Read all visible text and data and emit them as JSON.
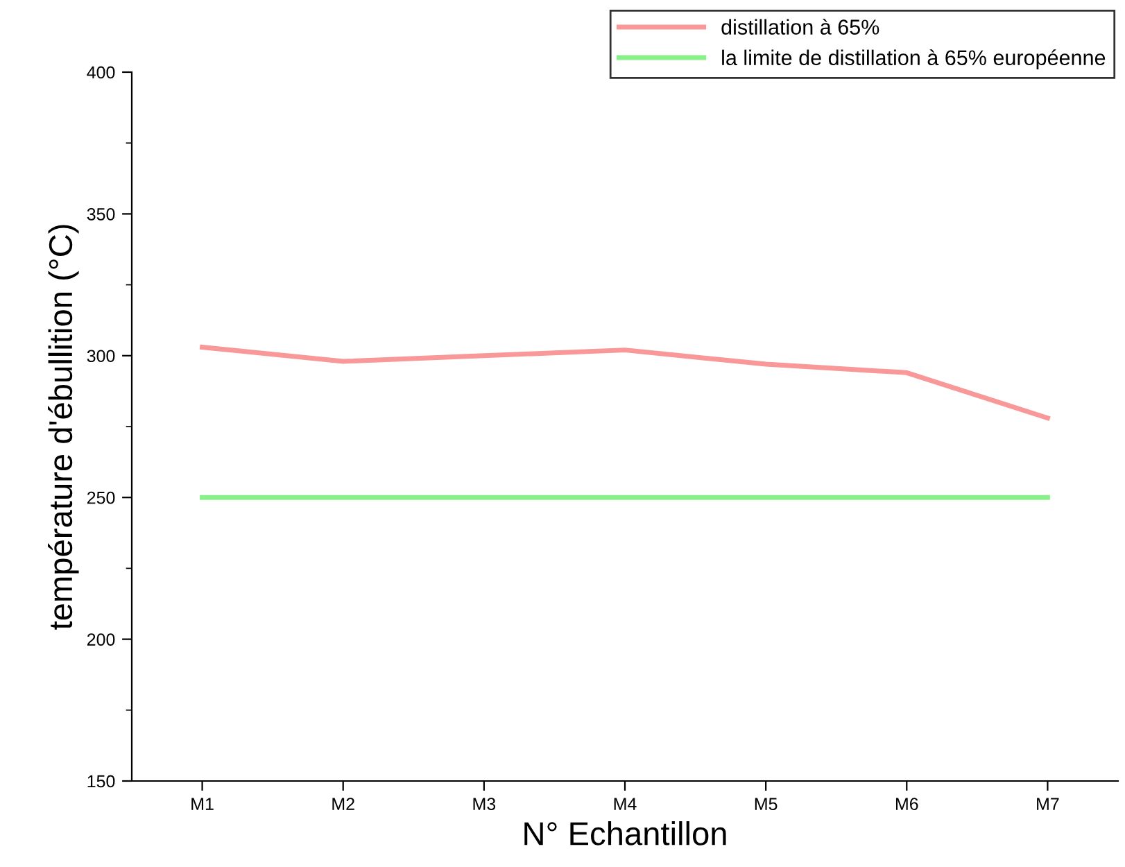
{
  "chart_data": {
    "type": "line",
    "xlabel": "N° Echantillon",
    "ylabel": "température d'ébullition (°C)",
    "categories": [
      "M1",
      "M2",
      "M3",
      "M4",
      "M5",
      "M6",
      "M7"
    ],
    "series": [
      {
        "name": "distillation à 65%",
        "color": "#f89898",
        "values": [
          303,
          298,
          300,
          302,
          297,
          294,
          278
        ]
      },
      {
        "name": "la limite de distillation à 65% européenne",
        "color": "#88f088",
        "values": [
          250,
          250,
          250,
          250,
          250,
          250,
          250
        ]
      }
    ],
    "ylim": [
      150,
      400
    ],
    "yticks": [
      150,
      {
        "value": 175,
        "label": null
      },
      200,
      {
        "value": 225,
        "label": null
      },
      250,
      {
        "value": 275,
        "label": null
      },
      300,
      {
        "value": 325,
        "label": null
      },
      350,
      {
        "value": 375,
        "label": null
      },
      400
    ],
    "grid": false,
    "legend": "top right",
    "marker": "none",
    "line_style": "solid"
  }
}
